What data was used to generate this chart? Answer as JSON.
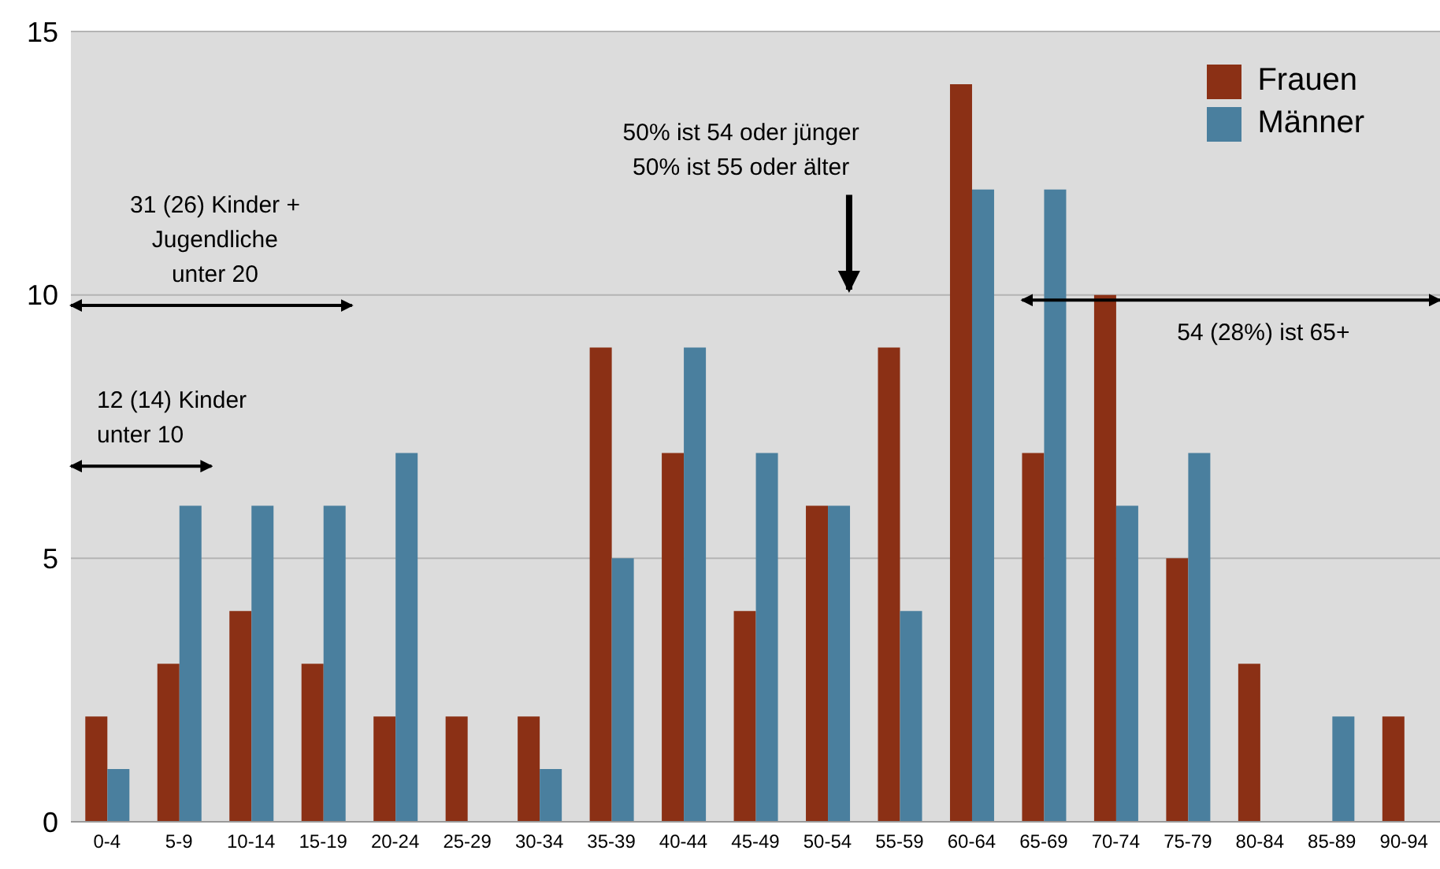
{
  "chart_data": {
    "type": "bar",
    "categories": [
      "0-4",
      "5-9",
      "10-14",
      "15-19",
      "20-24",
      "25-29",
      "30-34",
      "35-39",
      "40-44",
      "45-49",
      "50-54",
      "55-59",
      "60-64",
      "65-69",
      "70-74",
      "75-79",
      "80-84",
      "85-89",
      "90-94"
    ],
    "series": [
      {
        "name": "Frauen",
        "color": "#8b3015",
        "values": [
          2,
          3,
          4,
          3,
          2,
          2,
          2,
          9,
          7,
          4,
          6,
          9,
          14,
          7,
          10,
          5,
          3,
          0,
          2
        ]
      },
      {
        "name": "Männer",
        "color": "#4a7f9e",
        "values": [
          1,
          6,
          6,
          6,
          7,
          0,
          1,
          5,
          9,
          7,
          6,
          4,
          12,
          12,
          6,
          7,
          0,
          2,
          0
        ]
      }
    ],
    "ylim": [
      0,
      15
    ],
    "yticks": [
      0,
      5,
      10,
      15
    ],
    "grid": "y",
    "legend": "top right",
    "annotations": [
      "31 (26) Kinder +\nJugendliche\nunter 20",
      "12 (14) Kinder\nunter 10",
      "50% ist 54 oder jünger\n50% ist 55 oder älter",
      "54 (28%) ist 65+"
    ]
  }
}
